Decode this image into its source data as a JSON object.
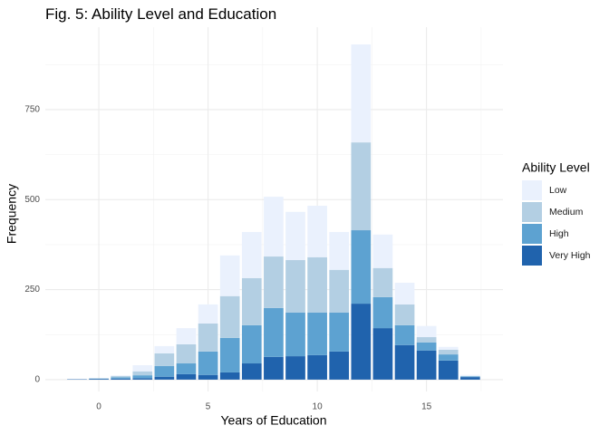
{
  "chart_data": {
    "type": "stacked-bar",
    "title": "Fig. 5: Ability Level and Education",
    "x_label": "Years of Education",
    "y_label": "Frequency",
    "legend_title": "Ability Level",
    "legend_position": "right",
    "grid": true,
    "x": [
      -1,
      0,
      1,
      2,
      3,
      4,
      5,
      6,
      7,
      8,
      9,
      10,
      11,
      12,
      13,
      14,
      15,
      16,
      17
    ],
    "series": [
      {
        "name": "Very High",
        "color": "#2063ad",
        "values": [
          1,
          2,
          3,
          4,
          8,
          15,
          13,
          20,
          45,
          63,
          65,
          68,
          78,
          211,
          143,
          96,
          81,
          53,
          7
        ]
      },
      {
        "name": "High",
        "color": "#5da2d1",
        "values": [
          0,
          1,
          3,
          8,
          30,
          30,
          65,
          96,
          106,
          136,
          121,
          118,
          108,
          204,
          86,
          55,
          22,
          17,
          2
        ]
      },
      {
        "name": "Medium",
        "color": "#b3cfe3",
        "values": [
          0,
          1,
          4,
          11,
          35,
          53,
          78,
          116,
          131,
          143,
          146,
          154,
          119,
          244,
          81,
          58,
          15,
          13,
          1
        ]
      },
      {
        "name": "Low",
        "color": "#eaf1fd",
        "values": [
          1,
          0,
          2,
          17,
          20,
          45,
          53,
          113,
          128,
          166,
          134,
          143,
          105,
          272,
          93,
          60,
          31,
          8,
          3
        ]
      }
    ],
    "xlim": [
      -2.45,
      18.5
    ],
    "ylim": [
      -33,
      979
    ],
    "xticks": [
      0,
      5,
      10,
      15
    ],
    "yticks": [
      0,
      250,
      500,
      750
    ],
    "x_minor_ticks": [
      2.5,
      7.5,
      12.5,
      17.5
    ],
    "y_minor_ticks": [
      125,
      375,
      625,
      875
    ]
  }
}
